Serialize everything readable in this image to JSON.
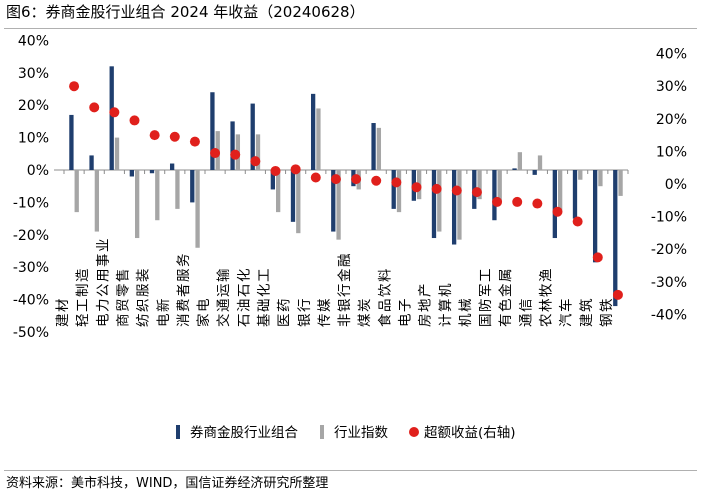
{
  "title": "图6：券商金股行业组合 2024 年收益（20240628）",
  "source": "资料来源：美市科技，WIND，国信证券经济研究所整理",
  "chart_data": {
    "type": "bar",
    "categories": [
      "建材",
      "轻工制造",
      "电力公用事业",
      "商贸零售",
      "纺织服装",
      "电新",
      "消费者服务",
      "家电",
      "交通运输",
      "石油石化",
      "基础化工",
      "医药",
      "银行",
      "传媒",
      "非银行金融",
      "煤炭",
      "食品饮料",
      "电子",
      "房地产",
      "计算机",
      "机械",
      "国防军工",
      "有色金属",
      "通信",
      "农林牧渔",
      "汽车",
      "建筑",
      "钢铁"
    ],
    "series": [
      {
        "name": "券商金股行业组合",
        "type": "bar",
        "axis": "left",
        "color": "#1f3e6e",
        "values": [
          17,
          4.5,
          32,
          -2,
          -1,
          2,
          -10,
          24,
          15,
          20.5,
          -6,
          -16,
          23.5,
          -19,
          -5,
          14.5,
          -12,
          -9.5,
          -21,
          -23,
          -12,
          -15.5,
          0.5,
          -1.5,
          -21,
          -15,
          -28.5,
          -42
        ]
      },
      {
        "name": "行业指数",
        "type": "bar",
        "axis": "left",
        "color": "#a6a6a6",
        "values": [
          -13,
          -19,
          10,
          -21,
          -15.5,
          -12,
          -24,
          12,
          11,
          11,
          -13,
          -19.5,
          19,
          -21.5,
          -6,
          13,
          -13,
          -9,
          -19,
          -21.5,
          -9,
          -9.5,
          5.5,
          4.5,
          -13,
          -3,
          -5,
          -8
        ]
      },
      {
        "name": "超额收益(右轴)",
        "type": "scatter",
        "axis": "right",
        "color": "#e0201c",
        "values": [
          30,
          23.5,
          22,
          19.5,
          15,
          14.5,
          13,
          9.5,
          9,
          7,
          4,
          4.5,
          2,
          1.5,
          1.5,
          1,
          0.5,
          -1,
          -1.5,
          -2,
          -2.5,
          -5.5,
          -5.5,
          -6,
          -8.5,
          -11.5,
          -22.5,
          -34
        ]
      }
    ],
    "y_left": {
      "min": -50,
      "max": 40,
      "ticks": [
        40,
        30,
        20,
        10,
        0,
        -10,
        -20,
        -30,
        -40,
        -50
      ]
    },
    "y_right": {
      "min": -40,
      "max": 40,
      "ticks": [
        40,
        30,
        20,
        10,
        0,
        -10,
        -20,
        -30,
        -40
      ]
    },
    "tick_format": "percent",
    "legend": "bottom",
    "grid": false
  }
}
